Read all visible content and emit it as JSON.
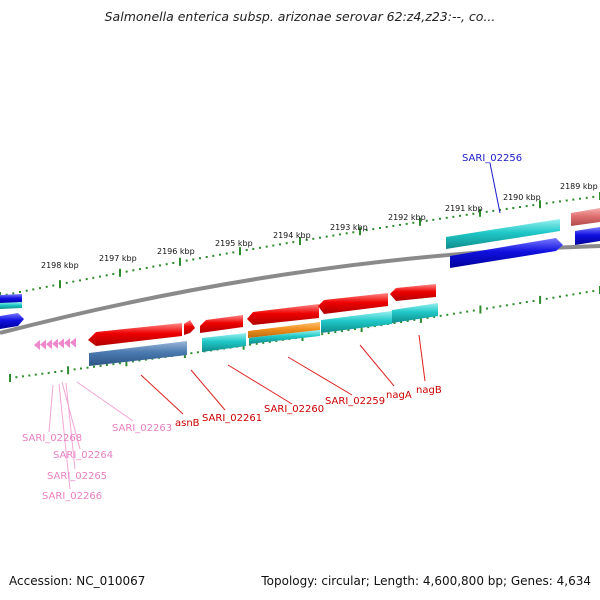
{
  "header": {
    "title": "Salmonella enterica subsp. arizonae serovar 62:z4,z23:--, co..."
  },
  "scale": {
    "kbp_labels": [
      "2198 kbp",
      "2197 kbp",
      "2196 kbp",
      "2195 kbp",
      "2194 kbp",
      "2193 kbp",
      "2192 kbp",
      "2191 kbp",
      "2190 kbp",
      "2189 kbp"
    ]
  },
  "gene_labels": {
    "sari_02256": "SARI_02256",
    "sari_02259": "SARI_02259",
    "sari_02260": "SARI_02260",
    "sari_02261": "SARI_02261",
    "sari_02263": "SARI_02263",
    "sari_02264": "SARI_02264",
    "sari_02265": "SARI_02265",
    "sari_02266": "SARI_02266",
    "sari_02268": "SARI_02268",
    "asnB": "asnB",
    "nagA": "nagA",
    "nagB": "nagB"
  },
  "colors": {
    "backbone": "#8a8a8a",
    "tick": "#2e8b2e",
    "red": "#e00000",
    "cyan": "#1fc8c8",
    "blue": "#1010e0",
    "steel": "#4a7ab0",
    "orange": "#f0901c",
    "pink": "#ee88cc",
    "salmon": "#e07070",
    "label_red": "#cc0000",
    "label_blue": "#1a1ac8",
    "label_pink": "#e87fc0"
  },
  "footer": {
    "accession": "Accession: NC_010067",
    "summary": "Topology: circular; Length: 4,600,800 bp; Genes: 4,634"
  }
}
